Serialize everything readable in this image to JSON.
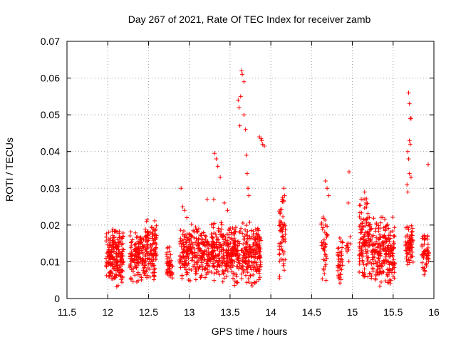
{
  "chart_data": {
    "type": "scatter",
    "title": "Day 267 of 2021, Rate Of TEC Index for receiver zamb",
    "xlabel": "GPS time / hours",
    "ylabel": "ROTI / TECUs",
    "xlim": [
      11.5,
      16
    ],
    "ylim": [
      0,
      0.07
    ],
    "xticks": [
      "11.5",
      "12",
      "12.5",
      "13",
      "13.5",
      "14",
      "14.5",
      "15",
      "15.5",
      "16"
    ],
    "yticks": [
      "0",
      "0.01",
      "0.02",
      "0.03",
      "0.04",
      "0.05",
      "0.06",
      "0.07"
    ],
    "grid": true,
    "marker": "+",
    "color": "#ff0000",
    "clusters": [
      {
        "x": [
          11.98,
          12.08
        ],
        "y": [
          0.004,
          0.02
        ],
        "n": 90
      },
      {
        "x": [
          12.08,
          12.2
        ],
        "y": [
          0.003,
          0.02
        ],
        "n": 110
      },
      {
        "x": [
          12.27,
          12.47
        ],
        "y": [
          0.004,
          0.019
        ],
        "n": 150
      },
      {
        "x": [
          12.47,
          12.6
        ],
        "y": [
          0.004,
          0.023
        ],
        "n": 110
      },
      {
        "x": [
          12.72,
          12.8
        ],
        "y": [
          0.004,
          0.015
        ],
        "n": 45
      },
      {
        "x": [
          12.88,
          13.0
        ],
        "y": [
          0.004,
          0.02
        ],
        "n": 90
      },
      {
        "x": [
          13.0,
          13.3
        ],
        "y": [
          0.004,
          0.021
        ],
        "n": 200
      },
      {
        "x": [
          13.3,
          13.58
        ],
        "y": [
          0.003,
          0.022
        ],
        "n": 220
      },
      {
        "x": [
          13.58,
          13.88
        ],
        "y": [
          0.003,
          0.021
        ],
        "n": 230
      },
      {
        "x": [
          14.1,
          14.18
        ],
        "y": [
          0.004,
          0.03
        ],
        "n": 60
      },
      {
        "x": [
          14.62,
          14.7
        ],
        "y": [
          0.004,
          0.024
        ],
        "n": 40
      },
      {
        "x": [
          14.82,
          14.88
        ],
        "y": [
          0.003,
          0.018
        ],
        "n": 40
      },
      {
        "x": [
          14.92,
          14.98
        ],
        "y": [
          0.007,
          0.02
        ],
        "n": 10
      },
      {
        "x": [
          15.08,
          15.22
        ],
        "y": [
          0.004,
          0.03
        ],
        "n": 120
      },
      {
        "x": [
          15.22,
          15.52
        ],
        "y": [
          0.003,
          0.024
        ],
        "n": 230
      },
      {
        "x": [
          15.65,
          15.75
        ],
        "y": [
          0.008,
          0.022
        ],
        "n": 70
      },
      {
        "x": [
          15.85,
          15.94
        ],
        "y": [
          0.005,
          0.02
        ],
        "n": 50
      }
    ],
    "points": [
      [
        12.9,
        0.03
      ],
      [
        12.92,
        0.025
      ],
      [
        12.94,
        0.024
      ],
      [
        12.97,
        0.022
      ],
      [
        13.22,
        0.027
      ],
      [
        13.3,
        0.027
      ],
      [
        13.31,
        0.0395
      ],
      [
        13.33,
        0.038
      ],
      [
        13.35,
        0.036
      ],
      [
        13.38,
        0.033
      ],
      [
        13.43,
        0.026
      ],
      [
        13.47,
        0.024
      ],
      [
        13.6,
        0.054
      ],
      [
        13.61,
        0.052
      ],
      [
        13.62,
        0.047
      ],
      [
        13.63,
        0.055
      ],
      [
        13.64,
        0.062
      ],
      [
        13.65,
        0.061
      ],
      [
        13.67,
        0.059
      ],
      [
        13.67,
        0.05
      ],
      [
        13.69,
        0.046
      ],
      [
        13.7,
        0.039
      ],
      [
        13.71,
        0.034
      ],
      [
        13.72,
        0.03
      ],
      [
        13.73,
        0.028
      ],
      [
        13.86,
        0.044
      ],
      [
        13.88,
        0.0435
      ],
      [
        13.89,
        0.043
      ],
      [
        13.9,
        0.042
      ],
      [
        13.92,
        0.0415
      ],
      [
        14.16,
        0.03
      ],
      [
        14.17,
        0.028
      ],
      [
        14.14,
        0.027
      ],
      [
        14.67,
        0.032
      ],
      [
        14.69,
        0.03
      ],
      [
        14.71,
        0.028
      ],
      [
        14.96,
        0.0345
      ],
      [
        14.95,
        0.026
      ],
      [
        15.15,
        0.029
      ],
      [
        15.13,
        0.027
      ],
      [
        15.17,
        0.026
      ],
      [
        15.69,
        0.056
      ],
      [
        15.7,
        0.053
      ],
      [
        15.71,
        0.049
      ],
      [
        15.72,
        0.049
      ],
      [
        15.7,
        0.043
      ],
      [
        15.71,
        0.042
      ],
      [
        15.68,
        0.04
      ],
      [
        15.69,
        0.038
      ],
      [
        15.7,
        0.034
      ],
      [
        15.72,
        0.033
      ],
      [
        15.67,
        0.031
      ],
      [
        15.68,
        0.029
      ],
      [
        15.93,
        0.0365
      ]
    ]
  }
}
